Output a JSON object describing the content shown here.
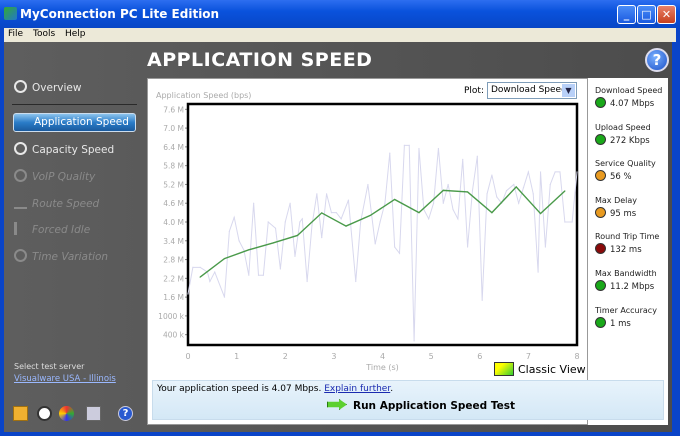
{
  "window": {
    "title": "MyConnection PC Lite Edition",
    "buttons": [
      "minimize",
      "maximize",
      "close"
    ]
  },
  "menu": [
    "File",
    "Tools",
    "Help"
  ],
  "header": {
    "title": "APPLICATION SPEED",
    "help_icon": "help-icon"
  },
  "sidebar": {
    "items": [
      {
        "label": "Overview",
        "icon": "overview-icon",
        "enabled": true
      },
      {
        "label": "Application Speed",
        "icon": "application-speed-icon",
        "enabled": true,
        "selected": true
      },
      {
        "label": "Capacity Speed",
        "icon": "capacity-speed-icon",
        "enabled": true
      },
      {
        "label": "VoIP Quality",
        "icon": "voip-icon",
        "enabled": false
      },
      {
        "label": "Route Speed",
        "icon": "route-icon",
        "enabled": false
      },
      {
        "label": "Forced Idle",
        "icon": "forced-idle-icon",
        "enabled": false
      },
      {
        "label": "Time Variation",
        "icon": "clock-icon",
        "enabled": false
      }
    ],
    "server_label": "Select test server",
    "server_link": "Visualware USA - Illinois",
    "bottom_icons": [
      "email-icon",
      "clock-icon",
      "globe-icon",
      "document-icon",
      "help-icon"
    ]
  },
  "plot": {
    "label": "Plot:",
    "selected": "Download Speed"
  },
  "chart_data": {
    "type": "line",
    "ylabel": "Application Speed (bps)",
    "xlabel": "Time (s)",
    "xlim": [
      0,
      8
    ],
    "ylim": [
      0.07,
      7.77
    ],
    "x_ticks": [
      "0",
      "1",
      "2",
      "3",
      "4",
      "5",
      "6",
      "7",
      "8"
    ],
    "y_ticks": [
      {
        "v": 7.6,
        "l": "7.6 M"
      },
      {
        "v": 7.0,
        "l": "7.0 M"
      },
      {
        "v": 6.4,
        "l": "6.4 M"
      },
      {
        "v": 5.8,
        "l": "5.8 M"
      },
      {
        "v": 5.2,
        "l": "5.2 M"
      },
      {
        "v": 4.6,
        "l": "4.6 M"
      },
      {
        "v": 4.0,
        "l": "4.0 M"
      },
      {
        "v": 3.4,
        "l": "3.4 M"
      },
      {
        "v": 2.8,
        "l": "2.8 M"
      },
      {
        "v": 2.2,
        "l": "2.2 M"
      },
      {
        "v": 1.6,
        "l": "1.6 M"
      },
      {
        "v": 1.0,
        "l": "1000 k"
      },
      {
        "v": 0.4,
        "l": "400 k"
      }
    ],
    "series": [
      {
        "color": "#d8d8ee",
        "x": [
          0,
          0.1,
          0.25,
          0.4,
          0.45,
          0.55,
          0.75,
          0.85,
          0.95,
          1.05,
          1.15,
          1.25,
          1.35,
          1.45,
          1.55,
          1.65,
          1.8,
          1.9,
          2.0,
          2.1,
          2.2,
          2.3,
          2.35,
          2.45,
          2.55,
          2.65,
          2.75,
          2.85,
          2.95,
          3.05,
          3.15,
          3.3,
          3.45,
          3.55,
          3.7,
          3.85,
          3.95,
          4.05,
          4.15,
          4.25,
          4.35,
          4.45,
          4.55,
          4.65,
          4.75,
          4.85,
          4.95,
          5.05,
          5.15,
          5.25,
          5.35,
          5.45,
          5.55,
          5.65,
          5.75,
          5.85,
          5.95,
          6.05,
          6.15,
          6.25,
          6.35,
          6.45,
          6.55,
          6.7,
          6.8,
          6.9,
          7.0,
          7.1,
          7.2,
          7.25,
          7.35,
          7.45,
          7.55,
          7.65,
          7.75,
          7.9,
          8.0
        ],
        "y": [
          1.7,
          2.55,
          2.55,
          2.4,
          2.1,
          2.4,
          1.6,
          3.7,
          4.15,
          3.4,
          3.1,
          2.3,
          4.6,
          2.3,
          2.3,
          4.0,
          3.8,
          2.5,
          4.0,
          4.6,
          2.9,
          4.0,
          4.1,
          2.1,
          3.9,
          4.9,
          3.5,
          4.9,
          4.3,
          4.3,
          4.1,
          4.7,
          2.1,
          4.0,
          5.2,
          3.3,
          4.0,
          4.6,
          6.2,
          3.2,
          3.0,
          6.45,
          6.45,
          0.2,
          6.35,
          4.4,
          4.1,
          4.6,
          6.35,
          4.6,
          5.2,
          4.4,
          4.1,
          6.0,
          3.2,
          5.0,
          6.1,
          1.5,
          4.9,
          5.5,
          4.8,
          4.6,
          5.0,
          5.2,
          4.6,
          5.1,
          5.6,
          4.9,
          2.4,
          5.6,
          3.2,
          5.2,
          5.6,
          5.6,
          4.0,
          4.0,
          5.6
        ]
      },
      {
        "color": "#4a9a4a",
        "x": [
          0.25,
          0.75,
          1.25,
          1.75,
          2.25,
          2.75,
          3.25,
          3.75,
          4.25,
          4.75,
          5.25,
          5.75,
          6.25,
          6.75,
          7.25,
          7.75
        ],
        "y": [
          2.24,
          2.83,
          3.11,
          3.33,
          3.57,
          4.29,
          3.87,
          4.21,
          4.72,
          4.3,
          5.01,
          4.96,
          4.3,
          5.12,
          4.27,
          4.99
        ]
      }
    ],
    "grid": false
  },
  "classic_view": "Classic View",
  "stats": [
    {
      "label": "Download Speed",
      "value": "4.07 Mbps",
      "color": "#1aa81a"
    },
    {
      "label": "Upload Speed",
      "value": "272 Kbps",
      "color": "#1aa81a"
    },
    {
      "label": "Service Quality",
      "value": "56 %",
      "color": "#e89a20"
    },
    {
      "label": "Max Delay",
      "value": "95 ms",
      "color": "#e89a20"
    },
    {
      "label": "Round Trip Time",
      "value": "132 ms",
      "color": "#8a0a0a"
    },
    {
      "label": "Max Bandwidth",
      "value": "11.2 Mbps",
      "color": "#1aa81a"
    },
    {
      "label": "Timer Accuracy",
      "value": "1 ms",
      "color": "#1aa81a"
    }
  ],
  "info": {
    "text": "Your application speed is 4.07 Mbps. ",
    "link": "Explain further",
    "suffix": ".",
    "run_label": "Run Application Speed Test"
  }
}
